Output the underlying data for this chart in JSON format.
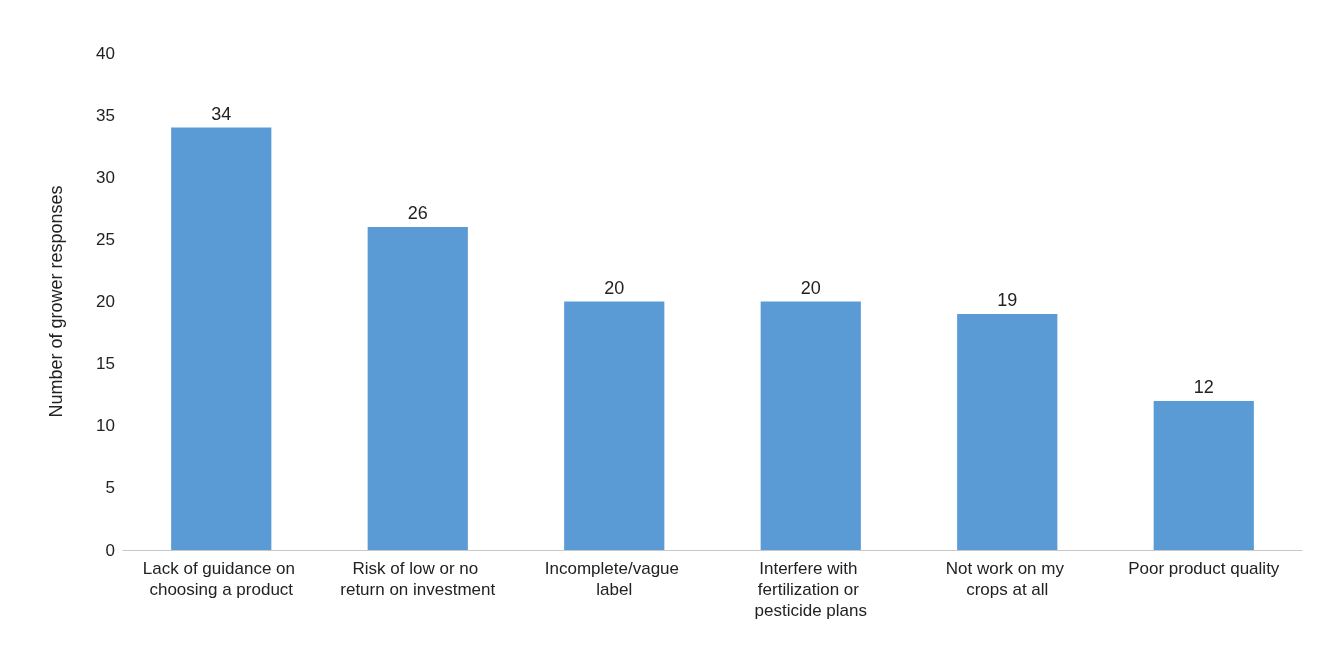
{
  "chart_data": {
    "type": "bar",
    "ylabel": "Number of grower responses",
    "categories": [
      "Lack of guidance on choosing a product",
      "Risk of low or no return on investment",
      "Incomplete/vague label",
      "Interfere with fertilization or pesticide plans",
      "Not work on my crops at all",
      "Poor product quality"
    ],
    "values": [
      34,
      26,
      20,
      20,
      19,
      12
    ],
    "color": "#5b9bd5",
    "ylim": [
      0,
      40
    ],
    "yticks": [
      0,
      5,
      10,
      15,
      20,
      25,
      30,
      35,
      40
    ],
    "grid": false,
    "data_labels": true
  }
}
